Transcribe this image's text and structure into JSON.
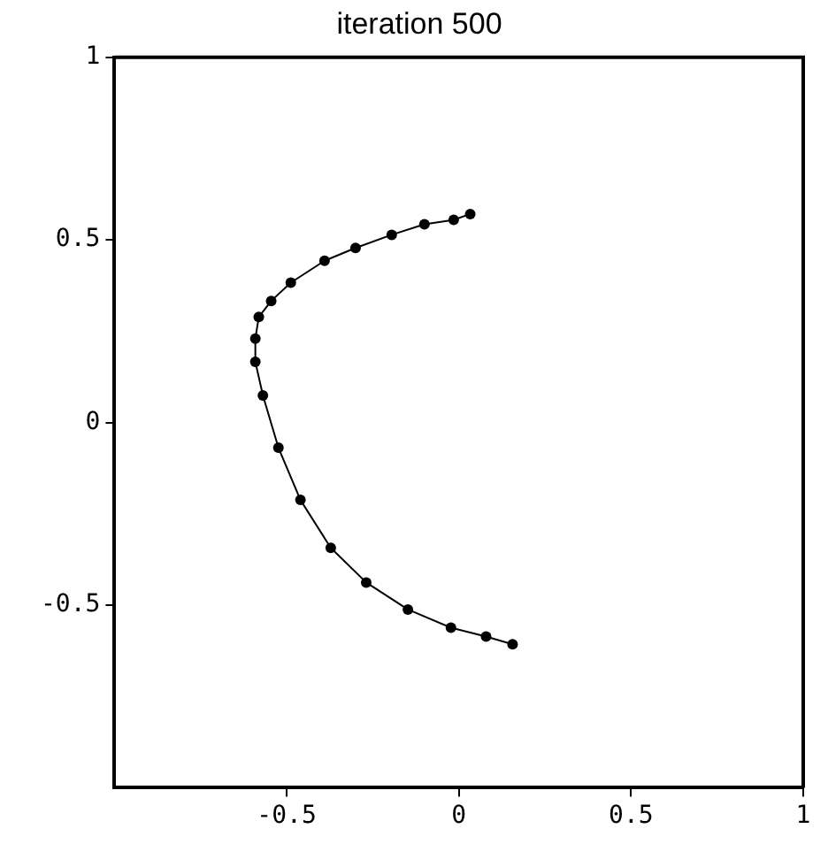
{
  "chart_data": {
    "type": "line",
    "title": "iteration 500",
    "marker": "circle",
    "line_style": "solid",
    "grid": false,
    "legend": false,
    "x": [
      0.033,
      -0.015,
      -0.1,
      -0.195,
      -0.3,
      -0.39,
      -0.488,
      -0.545,
      -0.581,
      -0.591,
      -0.591,
      -0.569,
      -0.524,
      -0.46,
      -0.372,
      -0.269,
      -0.148,
      -0.023,
      0.079,
      0.156
    ],
    "series": [
      {
        "color": "#000000",
        "values": [
          0.571,
          0.555,
          0.543,
          0.514,
          0.478,
          0.443,
          0.383,
          0.333,
          0.289,
          0.23,
          0.166,
          0.074,
          -0.069,
          -0.212,
          -0.343,
          -0.438,
          -0.512,
          -0.562,
          -0.586,
          -0.607
        ]
      }
    ],
    "xlim": [
      -1,
      1
    ],
    "xticks": [
      -0.5,
      0,
      0.5,
      1
    ],
    "ylim": [
      -1,
      1
    ],
    "yticks": [
      -0.5,
      0,
      0.5,
      1
    ]
  }
}
